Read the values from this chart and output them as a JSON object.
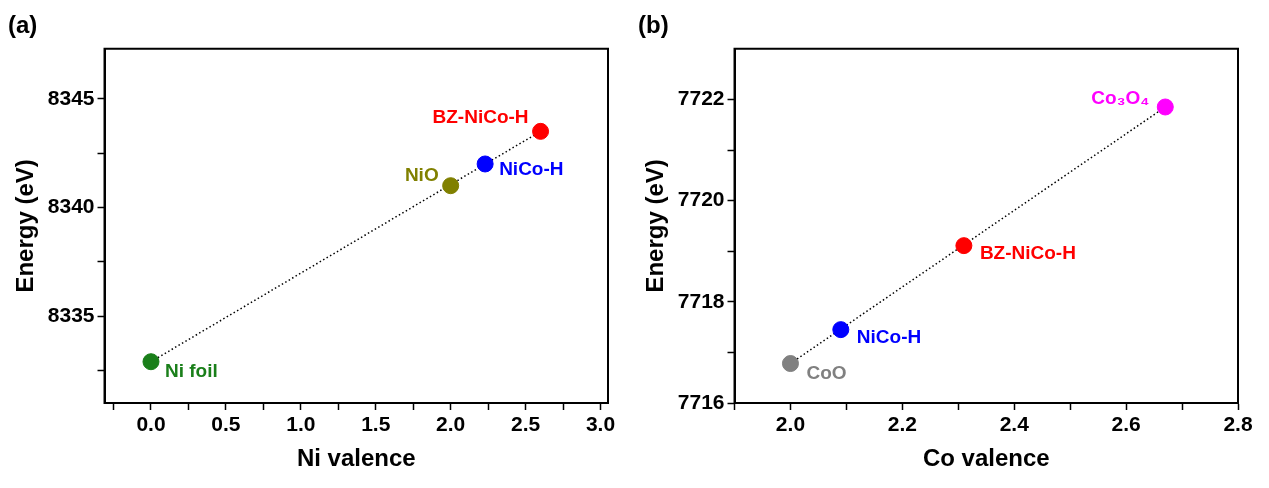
{
  "chart_data": [
    {
      "type": "scatter",
      "title": "(a)",
      "xlabel": "Ni valence",
      "ylabel": "Energy (eV)",
      "legend": false,
      "grid": false,
      "xlim": [
        -0.31,
        3.05
      ],
      "ylim": [
        8331,
        8347.3
      ],
      "xticks": [
        {
          "value": -0.25,
          "label": null
        },
        {
          "value": 0,
          "label": "0.0"
        },
        {
          "value": 0.25,
          "label": null
        },
        {
          "value": 0.5,
          "label": "0.5"
        },
        {
          "value": 0.75,
          "label": null
        },
        {
          "value": 1,
          "label": "1.0"
        },
        {
          "value": 1.25,
          "label": null
        },
        {
          "value": 1.5,
          "label": "1.5"
        },
        {
          "value": 1.75,
          "label": null
        },
        {
          "value": 2,
          "label": "2.0"
        },
        {
          "value": 2.25,
          "label": null
        },
        {
          "value": 2.5,
          "label": "2.5"
        },
        {
          "value": 2.75,
          "label": null
        },
        {
          "value": 3,
          "label": "3.0"
        }
      ],
      "yticks": [
        {
          "value": 8332.5,
          "label": null
        },
        8335,
        {
          "value": 8337.5,
          "label": null
        },
        8340,
        {
          "value": 8342.5,
          "label": null
        },
        8345
      ],
      "series": [
        {
          "name": "Ni foil",
          "color": "#1a7f1a",
          "marker": "circle",
          "x": [
            0
          ],
          "values": [
            8332.9
          ]
        },
        {
          "name": "NiO",
          "color": "#808000",
          "marker": "circle",
          "x": [
            2
          ],
          "values": [
            8341.0
          ]
        },
        {
          "name": "NiCo-H",
          "color": "#0000ff",
          "marker": "circle",
          "x": [
            2.23
          ],
          "values": [
            8342.0
          ]
        },
        {
          "name": "BZ-NiCo-H",
          "color": "#ff0000",
          "marker": "circle",
          "x": [
            2.6
          ],
          "values": [
            8343.5
          ]
        },
        {
          "type": "line",
          "color": "#000000",
          "line_style": "dotted",
          "x": [
            0,
            2.6
          ],
          "values": [
            8332.9,
            8343.5
          ]
        }
      ]
    },
    {
      "type": "scatter",
      "title": "(b)",
      "xlabel": "Co valence",
      "ylabel": "Energy (eV)",
      "legend": false,
      "grid": false,
      "xlim": [
        1.9,
        2.8
      ],
      "ylim": [
        7716,
        7723
      ],
      "xticks": [
        {
          "value": 1.9,
          "label": null
        },
        {
          "value": 2.0,
          "label": "2.0"
        },
        {
          "value": 2.1,
          "label": null
        },
        {
          "value": 2.2,
          "label": "2.2"
        },
        {
          "value": 2.3,
          "label": null
        },
        {
          "value": 2.4,
          "label": "2.4"
        },
        {
          "value": 2.5,
          "label": null
        },
        {
          "value": 2.6,
          "label": "2.6"
        },
        {
          "value": 2.7,
          "label": null
        },
        {
          "value": 2.8,
          "label": "2.8"
        }
      ],
      "yticks": [
        7716,
        {
          "value": 7717,
          "label": null
        },
        7718,
        {
          "value": 7719,
          "label": null
        },
        7720,
        {
          "value": 7721,
          "label": null
        },
        7722
      ],
      "series": [
        {
          "name": "CoO",
          "color": "#808080",
          "marker": "circle",
          "x": [
            2.0
          ],
          "values": [
            7716.78
          ]
        },
        {
          "name": "NiCo-H",
          "color": "#0000ff",
          "marker": "circle",
          "x": [
            2.09
          ],
          "values": [
            7717.45
          ]
        },
        {
          "name": "BZ-NiCo-H",
          "color": "#ff0000",
          "marker": "circle",
          "x": [
            2.31
          ],
          "values": [
            7719.11
          ]
        },
        {
          "name": "Co₃O₄",
          "color": "#ff00ff",
          "marker": "circle",
          "x": [
            2.67
          ],
          "values": [
            7721.85
          ]
        },
        {
          "type": "line",
          "color": "#000000",
          "line_style": "dotted",
          "x": [
            2.0,
            2.67
          ],
          "values": [
            7716.78,
            7721.85
          ]
        }
      ]
    }
  ]
}
